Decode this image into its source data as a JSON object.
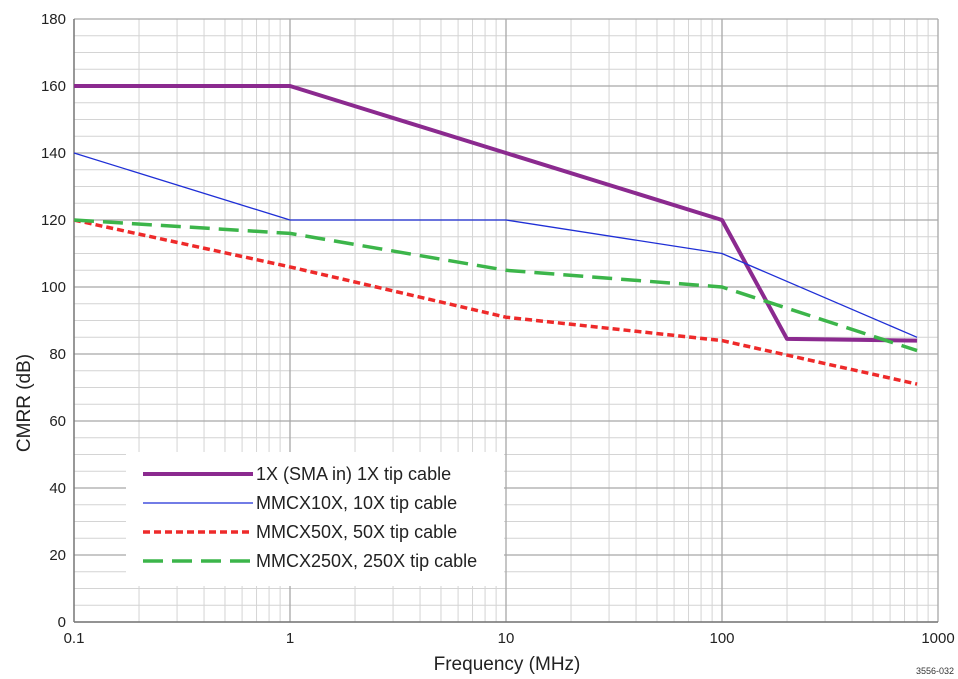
{
  "figure_id": "3556-032",
  "chart_data": {
    "type": "line",
    "xlabel": "Frequency (MHz)",
    "ylabel": "CMRR (dB)",
    "xscale": "log",
    "xlim": [
      0.1,
      1000
    ],
    "ylim": [
      0,
      180
    ],
    "xticks": [
      {
        "value": 0.1,
        "label": "0.1"
      },
      {
        "value": 1,
        "label": "1"
      },
      {
        "value": 10,
        "label": "10"
      },
      {
        "value": 100,
        "label": "100"
      },
      {
        "value": 1000,
        "label": "1000"
      }
    ],
    "yticks": [
      {
        "value": 0,
        "label": "0"
      },
      {
        "value": 20,
        "label": "20"
      },
      {
        "value": 40,
        "label": "40"
      },
      {
        "value": 60,
        "label": "60"
      },
      {
        "value": 80,
        "label": "80"
      },
      {
        "value": 100,
        "label": "100"
      },
      {
        "value": 120,
        "label": "120"
      },
      {
        "value": 140,
        "label": "140"
      },
      {
        "value": 160,
        "label": "160"
      },
      {
        "value": 180,
        "label": "180"
      }
    ],
    "grid": true,
    "legend_position": "bottom-left",
    "series": [
      {
        "name": "1X (SMA in) 1X tip cable",
        "color": "#8b2a8f",
        "style": "solid-thick",
        "x": [
          0.1,
          1,
          10,
          100,
          200,
          800
        ],
        "y": [
          160,
          160,
          140,
          120,
          84.5,
          84
        ]
      },
      {
        "name": "MMCX10X, 10X tip cable",
        "color": "#1f2fd6",
        "style": "solid-thin",
        "x": [
          0.1,
          1,
          10,
          100,
          800
        ],
        "y": [
          140,
          120,
          120,
          110,
          85
        ]
      },
      {
        "name": "MMCX50X, 50X tip cable",
        "color": "#ee2a2a",
        "style": "dotted",
        "x": [
          0.1,
          1,
          10,
          100,
          800
        ],
        "y": [
          120,
          106,
          91,
          84,
          71
        ]
      },
      {
        "name": "MMCX250X, 250X tip cable",
        "color": "#3cb54a",
        "style": "dashed",
        "x": [
          0.1,
          1,
          10,
          100,
          800
        ],
        "y": [
          120,
          116,
          105,
          100,
          81
        ]
      }
    ]
  }
}
